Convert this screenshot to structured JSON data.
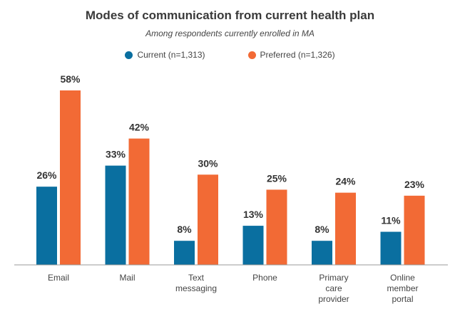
{
  "colors": {
    "current": "#0a6fa0",
    "preferred": "#f26a35",
    "axis": "#999999"
  },
  "chart_data": {
    "type": "bar",
    "title": "Modes of communication from current health plan",
    "subtitle": "Among respondents currently enrolled in MA",
    "categories": [
      [
        "Email"
      ],
      [
        "Mail"
      ],
      [
        "Text",
        "messaging"
      ],
      [
        "Phone"
      ],
      [
        "Primary",
        "care",
        "provider"
      ],
      [
        "Online",
        "member",
        "portal"
      ]
    ],
    "series": [
      {
        "name": "Current (n=1,313)",
        "values": [
          26,
          33,
          8,
          13,
          8,
          11
        ],
        "labels": [
          "26%",
          "33%",
          "8%",
          "13%",
          "8%",
          "11%"
        ]
      },
      {
        "name": "Preferred (n=1,326)",
        "values": [
          58,
          42,
          30,
          25,
          24,
          23
        ],
        "labels": [
          "58%",
          "42%",
          "30%",
          "25%",
          "24%",
          "23%"
        ]
      }
    ],
    "ylim": [
      0,
      58
    ],
    "grid": false,
    "legend": "top-center"
  }
}
